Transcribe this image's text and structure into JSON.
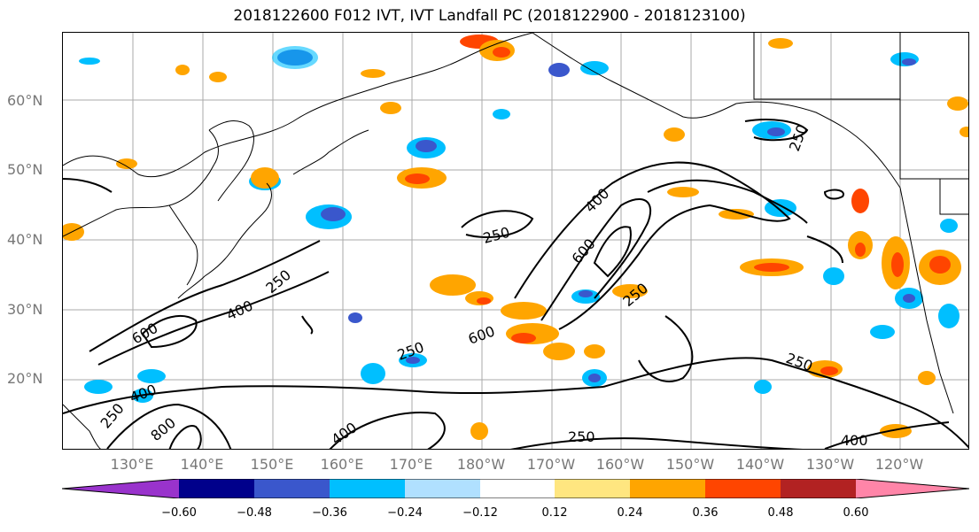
{
  "title": "2018122600 F012 IVT, IVT Landfall PC (2018122900 - 2018123100)",
  "lat_labels": [
    "60°N",
    "50°N",
    "40°N",
    "30°N",
    "20°N"
  ],
  "lon_labels": [
    "130°E",
    "140°E",
    "150°E",
    "160°E",
    "170°E",
    "180°W",
    "170°W",
    "160°W",
    "150°W",
    "140°W",
    "130°W",
    "120°W"
  ],
  "contour_labels": [
    "250",
    "400",
    "600",
    "800",
    "250",
    "400",
    "250",
    "400",
    "600",
    "250",
    "250",
    "250",
    "400",
    "600",
    "250",
    "250",
    "400"
  ],
  "colorbar": {
    "ticks": [
      "−0.60",
      "−0.48",
      "−0.36",
      "−0.24",
      "−0.12",
      "0.12",
      "0.24",
      "0.36",
      "0.48",
      "0.60"
    ],
    "colors": [
      "#9933cc",
      "#00008b",
      "#3a57cc",
      "#00bfff",
      "#b0e0ff",
      "#ffffff",
      "#ffe680",
      "#ffa500",
      "#ff4500",
      "#b22222",
      "#ff85a8"
    ]
  }
}
